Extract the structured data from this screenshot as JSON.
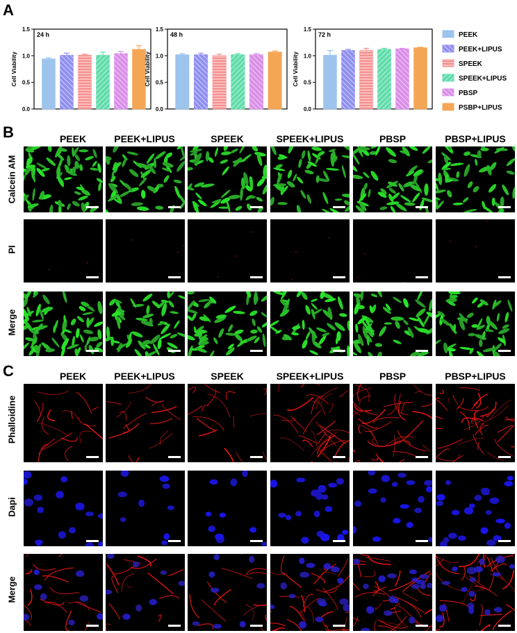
{
  "panels": {
    "a": "A",
    "b": "B",
    "c": "C"
  },
  "chart_data": {
    "type": "bar",
    "ylabel": "Cell Viability",
    "ylim": [
      0,
      1.5
    ],
    "yticks": [
      "0.0",
      "0.5",
      "1.0",
      "1.5"
    ],
    "groups": [
      "PEEK",
      "PEEK+LIPUS",
      "SPEEK",
      "SPEEK+LIPUS",
      "PBSP",
      "PSBP+LIPUS"
    ],
    "charts": [
      {
        "label": "24 h",
        "values": [
          0.94,
          1.01,
          1.01,
          1.01,
          1.04,
          1.12
        ],
        "errors": [
          0.02,
          0.04,
          0.02,
          0.06,
          0.04,
          0.07
        ]
      },
      {
        "label": "48 h",
        "values": [
          1.02,
          1.02,
          1.0,
          1.02,
          1.02,
          1.07
        ],
        "errors": [
          0.02,
          0.03,
          0.03,
          0.02,
          0.02,
          0.02
        ]
      },
      {
        "label": "72 h",
        "values": [
          1.01,
          1.1,
          1.1,
          1.12,
          1.13,
          1.15
        ],
        "errors": [
          0.09,
          0.02,
          0.04,
          0.02,
          0.01,
          0.01
        ]
      }
    ],
    "legend": [
      "PEEK",
      "PEEK+LIPUS",
      "SPEEK",
      "SPEEK+LIPUS",
      "PBSP",
      "PSBP+LIPUS"
    ],
    "legend_placement": "right",
    "colors": [
      "#9cc4ec",
      "#8f8ff0",
      "#f58e8e",
      "#5fdcaa",
      "#d98ee8",
      "#f5a655"
    ]
  },
  "section_b": {
    "columns": [
      "PEEK",
      "PEEK+LIPUS",
      "SPEEK",
      "SPEEK+LIPUS",
      "PBSP",
      "PBSP+LIPUS"
    ],
    "rows": [
      "Calcein AM",
      "PI",
      "Merge"
    ]
  },
  "section_c": {
    "columns": [
      "PEEK",
      "PEEK+LIPUS",
      "SPEEK",
      "SPEEK+LIPUS",
      "PBSP",
      "PBSP+LIPUS"
    ],
    "rows": [
      "Phalloidine",
      "Dapi",
      "Merge"
    ]
  }
}
